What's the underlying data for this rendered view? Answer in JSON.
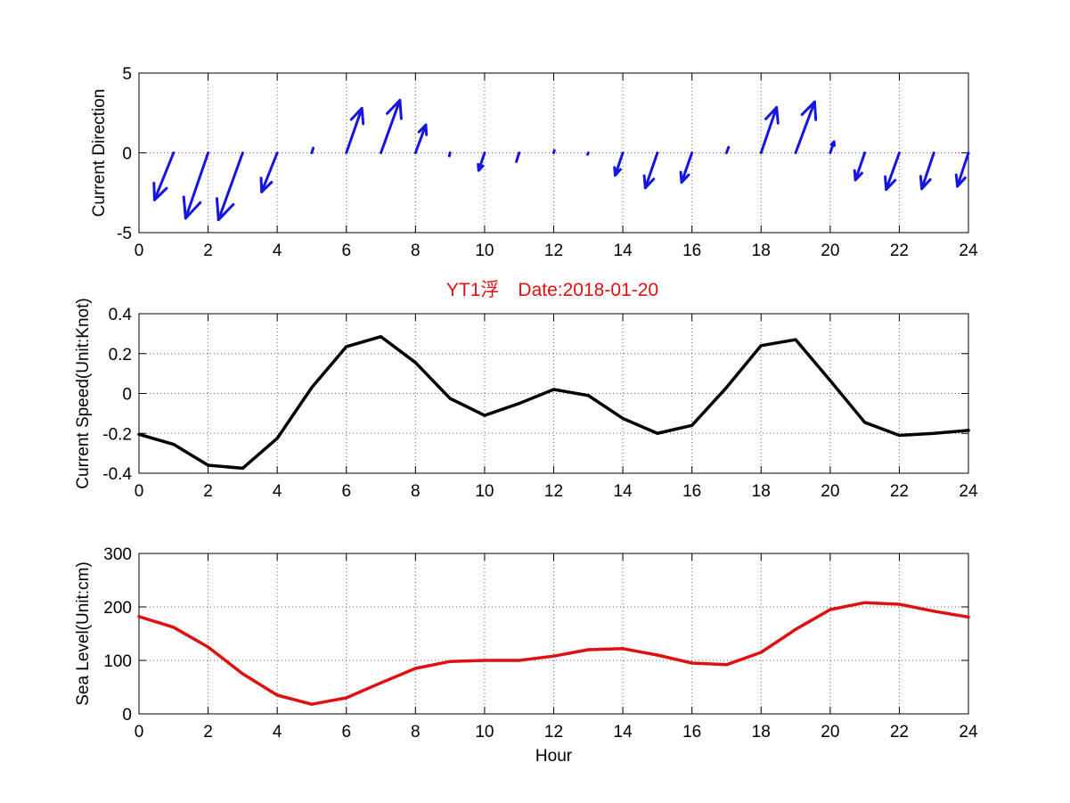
{
  "figure": {
    "title": "YT1浮　Date:2018-01-20",
    "title_color": "#dd1111"
  },
  "chart_data": [
    {
      "type": "quiver",
      "ylabel": "Current Direction",
      "xlim": [
        0,
        24
      ],
      "ylim": [
        -5,
        5
      ],
      "xticks": [
        0,
        2,
        4,
        6,
        8,
        10,
        12,
        14,
        16,
        18,
        20,
        22,
        24
      ],
      "yticks": [
        -5,
        0,
        5
      ],
      "grid": true,
      "color": "#1515dd",
      "vectors": [
        {
          "x": 1,
          "u": -0.55,
          "v": -2.95
        },
        {
          "x": 2,
          "u": -0.65,
          "v": -4.1
        },
        {
          "x": 3,
          "u": -0.7,
          "v": -4.2
        },
        {
          "x": 4,
          "u": -0.45,
          "v": -2.45
        },
        {
          "x": 5,
          "u": 0.04,
          "v": 0.3
        },
        {
          "x": 6,
          "u": 0.45,
          "v": 2.8
        },
        {
          "x": 7,
          "u": 0.55,
          "v": 3.3
        },
        {
          "x": 8,
          "u": 0.3,
          "v": 1.75
        },
        {
          "x": 9,
          "u": -0.02,
          "v": -0.2
        },
        {
          "x": 10,
          "u": -0.17,
          "v": -1.1
        },
        {
          "x": 11,
          "u": -0.08,
          "v": -0.55
        },
        {
          "x": 12,
          "u": 0.02,
          "v": 0.15
        },
        {
          "x": 13,
          "u": -0.02,
          "v": -0.1
        },
        {
          "x": 14,
          "u": -0.22,
          "v": -1.4
        },
        {
          "x": 15,
          "u": -0.35,
          "v": -2.2
        },
        {
          "x": 16,
          "u": -0.3,
          "v": -1.85
        },
        {
          "x": 17,
          "u": 0.06,
          "v": 0.35
        },
        {
          "x": 18,
          "u": 0.45,
          "v": 2.85
        },
        {
          "x": 19,
          "u": 0.55,
          "v": 3.2
        },
        {
          "x": 20,
          "u": 0.11,
          "v": 0.7
        },
        {
          "x": 21,
          "u": -0.27,
          "v": -1.7
        },
        {
          "x": 22,
          "u": -0.38,
          "v": -2.3
        },
        {
          "x": 23,
          "u": -0.35,
          "v": -2.25
        },
        {
          "x": 24,
          "u": -0.32,
          "v": -2.1
        }
      ]
    },
    {
      "type": "line",
      "ylabel": "Current Speed(Unit:Knot)",
      "xlim": [
        0,
        24
      ],
      "ylim": [
        -0.4,
        0.4
      ],
      "xticks": [
        0,
        2,
        4,
        6,
        8,
        10,
        12,
        14,
        16,
        18,
        20,
        22,
        24
      ],
      "yticks": [
        -0.4,
        -0.2,
        0,
        0.2,
        0.4
      ],
      "grid": true,
      "color": "#000000",
      "series": [
        {
          "x": [
            0,
            1,
            2,
            3,
            4,
            5,
            6,
            7,
            8,
            9,
            10,
            11,
            12,
            13,
            14,
            15,
            16,
            17,
            18,
            19,
            20,
            21,
            22,
            23,
            24
          ],
          "values": [
            -0.205,
            -0.255,
            -0.36,
            -0.375,
            -0.225,
            0.03,
            0.235,
            0.285,
            0.155,
            -0.025,
            -0.11,
            -0.05,
            0.02,
            -0.01,
            -0.125,
            -0.2,
            -0.16,
            0.03,
            0.24,
            0.27,
            0.065,
            -0.145,
            -0.21,
            -0.2,
            -0.185
          ]
        }
      ]
    },
    {
      "type": "line",
      "ylabel": "Sea Level(Unit:cm)",
      "xlabel": "Hour",
      "xlim": [
        0,
        24
      ],
      "ylim": [
        0,
        300
      ],
      "xticks": [
        0,
        2,
        4,
        6,
        8,
        10,
        12,
        14,
        16,
        18,
        20,
        22,
        24
      ],
      "yticks": [
        0,
        100,
        200,
        300
      ],
      "grid": true,
      "color": "#dd1111",
      "series": [
        {
          "x": [
            0,
            1,
            2,
            3,
            4,
            5,
            6,
            7,
            8,
            9,
            10,
            11,
            12,
            13,
            14,
            15,
            16,
            17,
            18,
            19,
            20,
            21,
            22,
            23,
            24
          ],
          "values": [
            182,
            162,
            125,
            75,
            35,
            18,
            30,
            58,
            85,
            98,
            100,
            100,
            108,
            120,
            122,
            110,
            95,
            92,
            115,
            158,
            195,
            208,
            205,
            192,
            181
          ]
        }
      ]
    }
  ]
}
